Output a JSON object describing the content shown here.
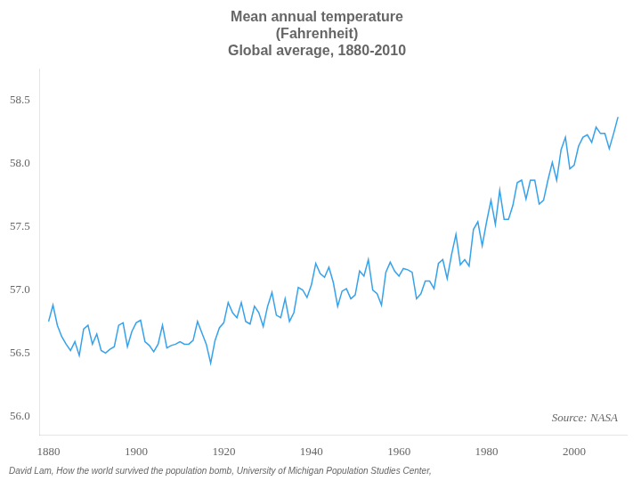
{
  "chart_data": {
    "type": "line",
    "title": [
      "Mean annual temperature",
      "(Fahrenheit)",
      "Global average, 1880-2010"
    ],
    "annotations": [
      "Source: NASA",
      "David Lam, How the world survived the population bomb, University of Michigan Population Studies Center,"
    ],
    "x": [
      1880,
      1881,
      1882,
      1883,
      1884,
      1885,
      1886,
      1887,
      1888,
      1889,
      1890,
      1891,
      1892,
      1893,
      1894,
      1895,
      1896,
      1897,
      1898,
      1899,
      1900,
      1901,
      1902,
      1903,
      1904,
      1905,
      1906,
      1907,
      1908,
      1909,
      1910,
      1911,
      1912,
      1913,
      1914,
      1915,
      1916,
      1917,
      1918,
      1919,
      1920,
      1921,
      1922,
      1923,
      1924,
      1925,
      1926,
      1927,
      1928,
      1929,
      1930,
      1931,
      1932,
      1933,
      1934,
      1935,
      1936,
      1937,
      1938,
      1939,
      1940,
      1941,
      1942,
      1943,
      1944,
      1945,
      1946,
      1947,
      1948,
      1949,
      1950,
      1951,
      1952,
      1953,
      1954,
      1955,
      1956,
      1957,
      1958,
      1959,
      1960,
      1961,
      1962,
      1963,
      1964,
      1965,
      1966,
      1967,
      1968,
      1969,
      1970,
      1971,
      1972,
      1973,
      1974,
      1975,
      1976,
      1977,
      1978,
      1979,
      1980,
      1981,
      1982,
      1983,
      1984,
      1985,
      1986,
      1987,
      1988,
      1989,
      1990,
      1991,
      1992,
      1993,
      1994,
      1995,
      1996,
      1997,
      1998,
      1999,
      2000,
      2001,
      2002,
      2003,
      2004,
      2005,
      2006,
      2007,
      2008,
      2009,
      2010
    ],
    "values": [
      56.75,
      56.88,
      56.72,
      56.63,
      56.57,
      56.52,
      56.59,
      56.48,
      56.69,
      56.72,
      56.57,
      56.65,
      56.52,
      56.5,
      56.53,
      56.55,
      56.72,
      56.74,
      56.55,
      56.67,
      56.74,
      56.76,
      56.59,
      56.56,
      56.51,
      56.57,
      56.72,
      56.54,
      56.56,
      56.57,
      56.59,
      56.57,
      56.57,
      56.6,
      56.75,
      56.66,
      56.57,
      56.42,
      56.6,
      56.7,
      56.74,
      56.9,
      56.82,
      56.78,
      56.9,
      56.75,
      56.73,
      56.87,
      56.82,
      56.71,
      56.87,
      56.98,
      56.8,
      56.78,
      56.93,
      56.75,
      56.82,
      57.02,
      57.0,
      56.94,
      57.04,
      57.21,
      57.13,
      57.1,
      57.18,
      57.06,
      56.87,
      56.99,
      57.01,
      56.93,
      56.96,
      57.15,
      57.11,
      57.24,
      57.0,
      56.97,
      56.88,
      57.14,
      57.22,
      57.15,
      57.11,
      57.17,
      57.16,
      57.14,
      56.93,
      56.97,
      57.07,
      57.07,
      57.01,
      57.21,
      57.24,
      57.09,
      57.28,
      57.44,
      57.2,
      57.24,
      57.19,
      57.48,
      57.54,
      57.35,
      57.54,
      57.71,
      57.52,
      57.79,
      57.56,
      57.56,
      57.67,
      57.85,
      57.87,
      57.72,
      57.87,
      57.87,
      57.68,
      57.71,
      57.87,
      58.01,
      57.87,
      58.11,
      58.21,
      57.96,
      57.99,
      58.14,
      58.21,
      58.23,
      58.17,
      58.29,
      58.24,
      58.24,
      58.12,
      58.24,
      58.37
    ],
    "xlim": [
      1878,
      2012
    ],
    "ylim": [
      55.85,
      58.75
    ],
    "xticks": [
      1880,
      1900,
      1920,
      1940,
      1960,
      1980,
      2000
    ],
    "yticks": [
      {
        "value": 56.0,
        "label": "56.0"
      },
      56.5,
      {
        "value": 57.0,
        "label": "57.0"
      },
      57.5,
      {
        "value": 58.0,
        "label": "58.0"
      },
      58.5
    ],
    "grid": false
  }
}
